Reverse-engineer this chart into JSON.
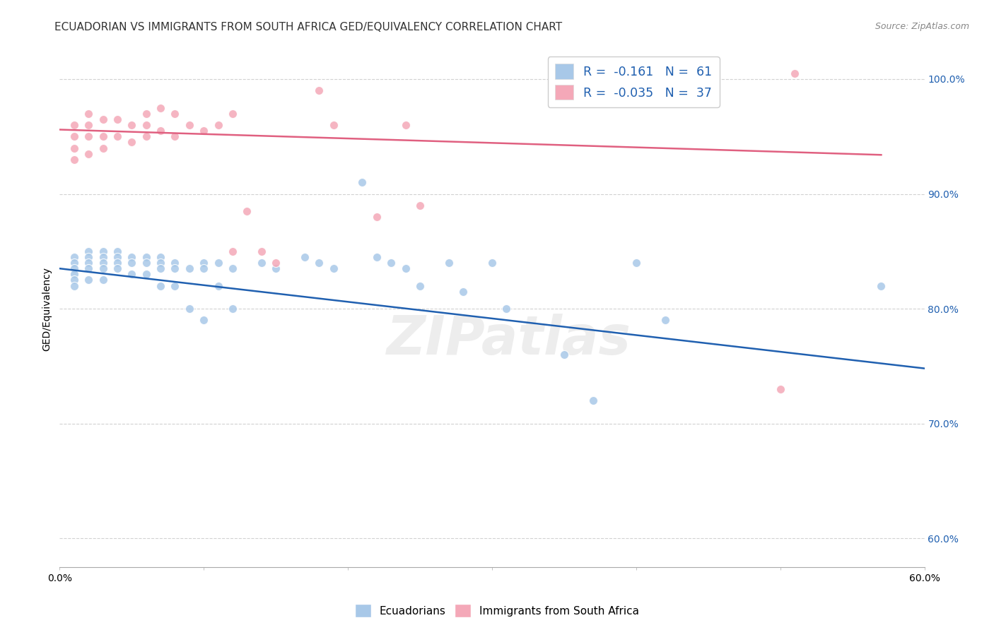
{
  "title": "ECUADORIAN VS IMMIGRANTS FROM SOUTH AFRICA GED/EQUIVALENCY CORRELATION CHART",
  "source": "Source: ZipAtlas.com",
  "ylabel": "GED/Equivalency",
  "watermark": "ZIPatlas",
  "blue_r": "-0.161",
  "blue_n": "61",
  "pink_r": "-0.035",
  "pink_n": "37",
  "blue_color": "#a8c8e8",
  "pink_color": "#f4a8b8",
  "blue_line_color": "#2060b0",
  "pink_line_color": "#e06080",
  "xmin": 0.0,
  "xmax": 0.6,
  "ymin": 0.575,
  "ymax": 1.025,
  "yticks": [
    0.6,
    0.7,
    0.8,
    0.9,
    1.0
  ],
  "ytick_labels": [
    "60.0%",
    "70.0%",
    "80.0%",
    "90.0%",
    "100.0%"
  ],
  "xticks": [
    0.0,
    0.1,
    0.2,
    0.3,
    0.4,
    0.5,
    0.6
  ],
  "xtick_labels": [
    "0.0%",
    "",
    "",
    "",
    "",
    "",
    "60.0%"
  ],
  "blue_scatter_x": [
    0.01,
    0.01,
    0.01,
    0.01,
    0.01,
    0.01,
    0.02,
    0.02,
    0.02,
    0.02,
    0.02,
    0.03,
    0.03,
    0.03,
    0.03,
    0.03,
    0.04,
    0.04,
    0.04,
    0.04,
    0.05,
    0.05,
    0.05,
    0.06,
    0.06,
    0.06,
    0.07,
    0.07,
    0.07,
    0.07,
    0.08,
    0.08,
    0.08,
    0.09,
    0.09,
    0.1,
    0.1,
    0.1,
    0.11,
    0.11,
    0.12,
    0.12,
    0.14,
    0.15,
    0.17,
    0.18,
    0.19,
    0.21,
    0.22,
    0.23,
    0.24,
    0.25,
    0.27,
    0.28,
    0.3,
    0.31,
    0.35,
    0.37,
    0.4,
    0.42,
    0.57
  ],
  "blue_scatter_y": [
    0.845,
    0.84,
    0.835,
    0.83,
    0.825,
    0.82,
    0.85,
    0.845,
    0.84,
    0.835,
    0.825,
    0.85,
    0.845,
    0.84,
    0.835,
    0.825,
    0.85,
    0.845,
    0.84,
    0.835,
    0.845,
    0.84,
    0.83,
    0.845,
    0.84,
    0.83,
    0.845,
    0.84,
    0.835,
    0.82,
    0.84,
    0.835,
    0.82,
    0.835,
    0.8,
    0.84,
    0.835,
    0.79,
    0.84,
    0.82,
    0.835,
    0.8,
    0.84,
    0.835,
    0.845,
    0.84,
    0.835,
    0.91,
    0.845,
    0.84,
    0.835,
    0.82,
    0.84,
    0.815,
    0.84,
    0.8,
    0.76,
    0.72,
    0.84,
    0.79,
    0.82
  ],
  "pink_scatter_x": [
    0.01,
    0.01,
    0.01,
    0.01,
    0.02,
    0.02,
    0.02,
    0.02,
    0.03,
    0.03,
    0.03,
    0.04,
    0.04,
    0.05,
    0.05,
    0.06,
    0.06,
    0.06,
    0.07,
    0.07,
    0.08,
    0.08,
    0.09,
    0.1,
    0.11,
    0.12,
    0.12,
    0.13,
    0.14,
    0.15,
    0.18,
    0.19,
    0.22,
    0.24,
    0.25,
    0.5,
    0.51
  ],
  "pink_scatter_y": [
    0.96,
    0.95,
    0.94,
    0.93,
    0.97,
    0.96,
    0.95,
    0.935,
    0.965,
    0.95,
    0.94,
    0.965,
    0.95,
    0.96,
    0.945,
    0.97,
    0.96,
    0.95,
    0.975,
    0.955,
    0.97,
    0.95,
    0.96,
    0.955,
    0.96,
    0.97,
    0.85,
    0.885,
    0.85,
    0.84,
    0.99,
    0.96,
    0.88,
    0.96,
    0.89,
    0.73,
    1.005
  ],
  "blue_trend_x": [
    0.0,
    0.6
  ],
  "blue_trend_y": [
    0.835,
    0.748
  ],
  "pink_trend_x": [
    0.0,
    0.57
  ],
  "pink_trend_y": [
    0.956,
    0.934
  ],
  "background_color": "#ffffff",
  "grid_color": "#cccccc",
  "title_fontsize": 11,
  "axis_label_fontsize": 10,
  "tick_fontsize": 10,
  "marker_size": 75
}
